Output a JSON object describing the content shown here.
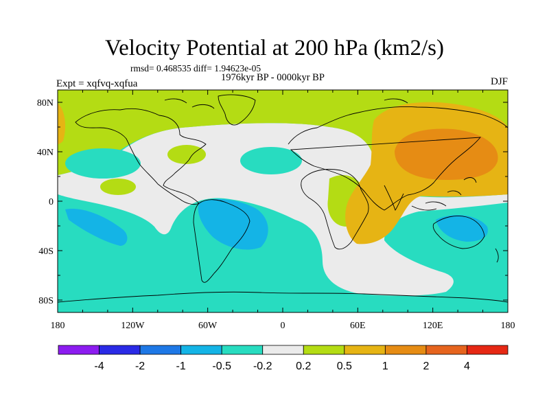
{
  "title": "Velocity Potential at 200 hPa (km2/s)",
  "stats": "rmsd= 0.468535 diff= 1.94623e-05",
  "period": "1976kyr BP - 0000kyr BP",
  "experiment": "Expt = xqfvq-xqfua",
  "season": "DJF",
  "lat_labels": [
    "80N",
    "40N",
    "0",
    "40S",
    "80S"
  ],
  "lon_labels": [
    "180",
    "120W",
    "60W",
    "0",
    "60E",
    "120E",
    "180"
  ],
  "colorbar": {
    "colors": [
      "#8c1cf0",
      "#2a2ae6",
      "#1e78e6",
      "#14b4e6",
      "#28dcc0",
      "#ebebeb",
      "#b4dc14",
      "#e6b414",
      "#e68c14",
      "#e6641e",
      "#e62814"
    ],
    "labels": [
      "-4",
      "-2",
      "-1",
      "-0.5",
      "-0.2",
      "0.2",
      "0.5",
      "1",
      "2",
      "4"
    ]
  },
  "map_colors": {
    "ocean_base": "#28dcc0",
    "neutral": "#ebebeb",
    "pos_weak": "#b4dc14",
    "pos_mid": "#e6b414",
    "pos_strong": "#e68c14",
    "neg_weak": "#14b4e6",
    "coast": "#000000"
  }
}
